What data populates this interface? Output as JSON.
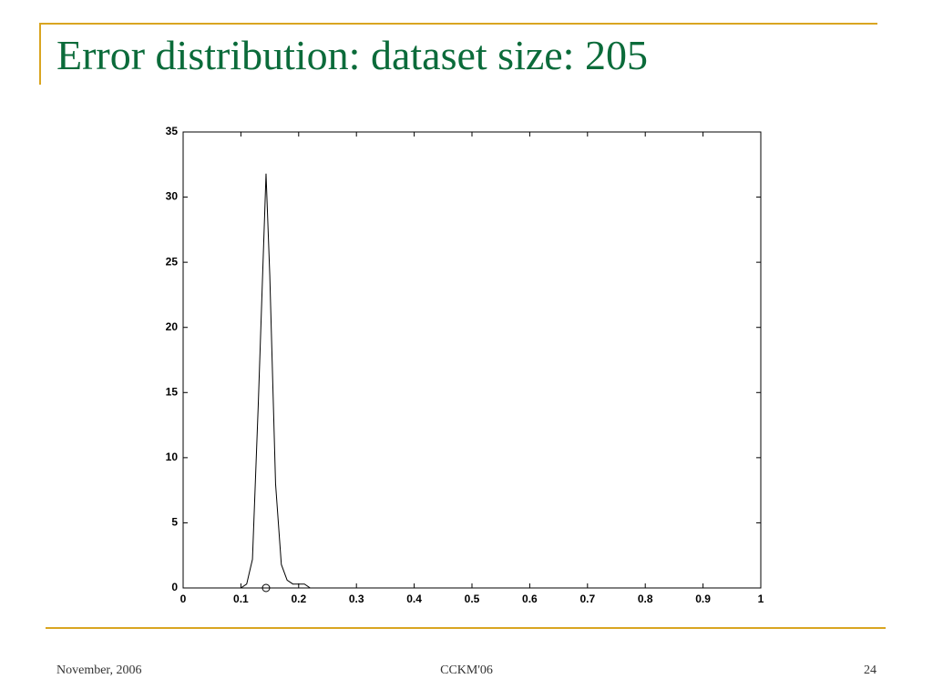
{
  "slide": {
    "title": "Error distribution: dataset size: 205",
    "footer_left": "November, 2006",
    "footer_center": "CCKM'06",
    "footer_right": "24"
  },
  "chart_data": {
    "type": "line",
    "xlim": [
      0,
      1
    ],
    "xticks": [
      0,
      0.1,
      0.2,
      0.3,
      0.4,
      0.5,
      0.6,
      0.7,
      0.8,
      0.9,
      1
    ],
    "ylim": [
      0,
      35
    ],
    "yticks": [
      0,
      5,
      10,
      15,
      20,
      25,
      30,
      35
    ],
    "grid": false,
    "series": [
      {
        "color": "#000000",
        "x": [
          0.1,
          0.11,
          0.12,
          0.13,
          0.1435,
          0.15,
          0.16,
          0.17,
          0.18,
          0.19,
          0.2,
          0.21,
          0.22,
          1
        ],
        "values": [
          0,
          0.3,
          2.2,
          14,
          31.8,
          24,
          8,
          1.8,
          0.6,
          0.3,
          0.3,
          0.3,
          0,
          0
        ]
      },
      {
        "color": "#000000",
        "marker": "circle",
        "x": [
          0.1435
        ],
        "values": [
          0
        ]
      }
    ]
  }
}
